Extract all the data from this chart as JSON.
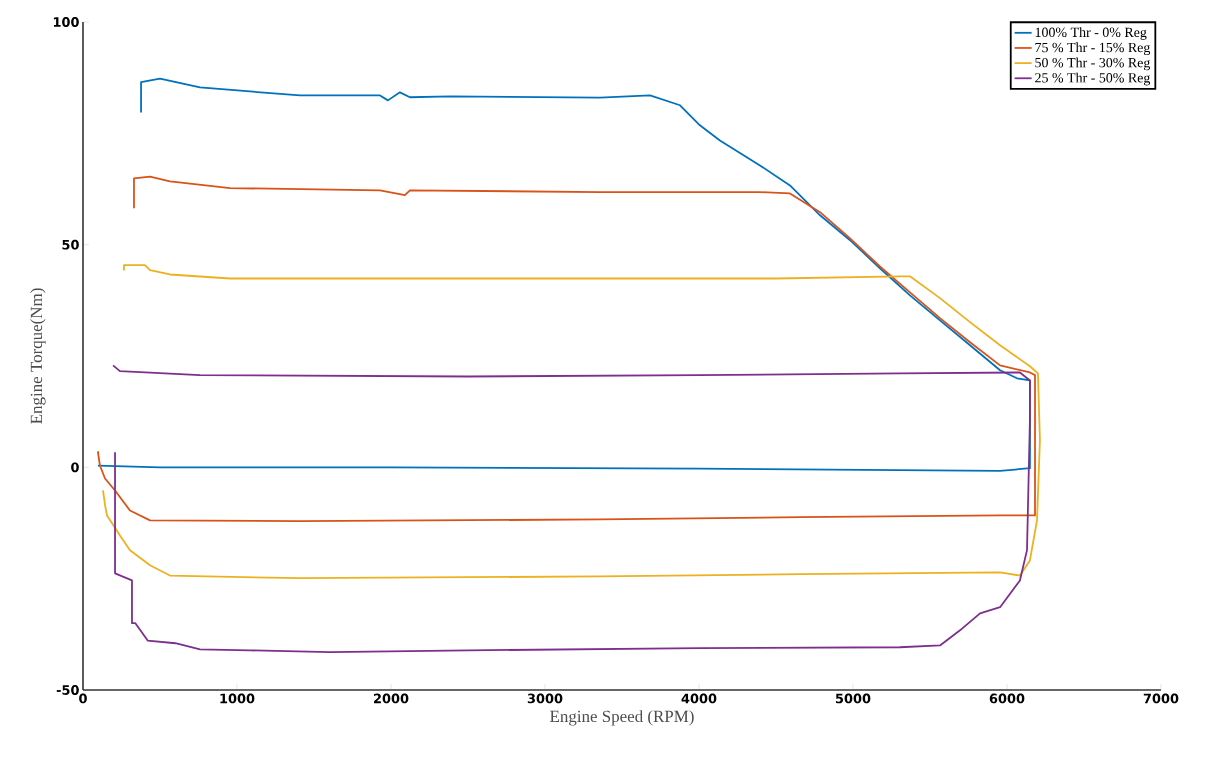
{
  "chart_data": {
    "type": "line",
    "xlabel": "Engine Speed (RPM)",
    "ylabel": "Engine Torque(Nm)",
    "xlim": [
      0,
      7000
    ],
    "ylim": [
      -50,
      100
    ],
    "xticks": [
      0,
      1000,
      2000,
      3000,
      4000,
      5000,
      6000,
      7000
    ],
    "yticks": [
      -50,
      0,
      50,
      100
    ],
    "grid": false,
    "legend": "top right",
    "line_style": "solid",
    "marker": "none",
    "series": [
      {
        "name": "100% Thr - 0% Reg",
        "color": "#0072bd",
        "x": [
          377,
          377,
          500,
          760,
          1084,
          1409,
          1929,
          1980,
          2058,
          2123,
          2383,
          3357,
          3682,
          3877,
          4006,
          4136,
          4396,
          4591,
          4786,
          4981,
          5175,
          5370,
          5565,
          5760,
          5955,
          6065,
          6149,
          6149,
          5955,
          4000,
          2000,
          500,
          97
        ],
        "values": [
          79.7,
          86.5,
          87.3,
          85.3,
          84.4,
          83.5,
          83.5,
          82.4,
          84.2,
          83.1,
          83.3,
          83,
          83.5,
          81.3,
          76.8,
          73.4,
          67.8,
          63.3,
          56.6,
          51,
          44.7,
          38.6,
          33,
          27.4,
          21.8,
          20,
          19.5,
          -0.2,
          -0.8,
          -0.3,
          0,
          0,
          0.4
        ]
      },
      {
        "name": "75 % Thr - 15% Reg",
        "color": "#d95319",
        "x": [
          331,
          331,
          435,
          565,
          955,
          1929,
          2090,
          2123,
          3357,
          4396,
          4591,
          4786,
          4981,
          5175,
          5370,
          5565,
          5760,
          5955,
          6149,
          6182,
          6182,
          5955,
          4656,
          3357,
          1409,
          435,
          305,
          208,
          143,
          110,
          97,
          104
        ],
        "values": [
          58.2,
          64.9,
          65.3,
          64.2,
          62.7,
          62.2,
          61.1,
          62.2,
          61.8,
          61.8,
          61.5,
          57.3,
          51.4,
          45.1,
          39.3,
          33.5,
          28.1,
          22.9,
          21.3,
          20.7,
          -10.8,
          -10.8,
          -11.2,
          -11.7,
          -12.1,
          -11.9,
          -9.7,
          -5.2,
          -2.5,
          0.4,
          3.4,
          3.4
        ]
      },
      {
        "name": "50 % Thr - 30% Reg",
        "color": "#edb120",
        "x": [
          266,
          266,
          402,
          435,
          565,
          955,
          3000,
          4500,
          5305,
          5370,
          5565,
          5760,
          5955,
          6149,
          6201,
          6214,
          6195,
          6149,
          6084,
          5955,
          4656,
          3357,
          1409,
          565,
          435,
          305,
          240,
          156,
          143,
          130
        ],
        "values": [
          44.2,
          45.4,
          45.4,
          44.3,
          43.3,
          42.4,
          42.4,
          42.4,
          42.9,
          42.9,
          38,
          32.6,
          27.4,
          22.7,
          21.1,
          6.1,
          -11.9,
          -20.9,
          -24.3,
          -23.6,
          -24,
          -24.5,
          -24.9,
          -24.3,
          -22,
          -18.6,
          -15.3,
          -10.8,
          -8.5,
          -5.2
        ]
      },
      {
        "name": "25 % Thr - 50% Reg",
        "color": "#7e2f8e",
        "x": [
          195,
          240,
          760,
          2500,
          4000,
          5305,
          6084,
          6149,
          6149,
          6130,
          6084,
          5955,
          5825,
          5695,
          5565,
          5305,
          4006,
          2500,
          1604,
          1084,
          760,
          600,
          420,
          340,
          318,
          318,
          208,
          208
        ],
        "values": [
          22.9,
          21.6,
          20.7,
          20.4,
          20.7,
          21.1,
          21.3,
          19.5,
          10.6,
          -18.6,
          -25.4,
          -31.4,
          -32.8,
          -36.6,
          -40,
          -40.4,
          -40.6,
          -41.1,
          -41.5,
          -41.1,
          -40.9,
          -39.5,
          -38.9,
          -35,
          -35,
          -25.4,
          -23.8,
          3.4
        ]
      }
    ]
  }
}
